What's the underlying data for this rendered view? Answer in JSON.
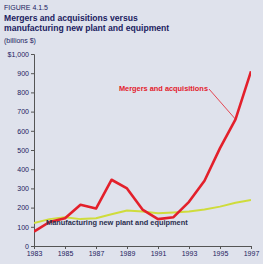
{
  "chart_data": {
    "type": "line",
    "subtitle": "FIGURE 4.1.5",
    "title": "Mergers and acquisitions versus manufacturing new plant and equipment",
    "ylabel": "(billions $)",
    "x": [
      1983,
      1984,
      1985,
      1986,
      1987,
      1988,
      1989,
      1990,
      1991,
      1992,
      1993,
      1994,
      1995,
      1996,
      1997
    ],
    "series": [
      {
        "name": "Mergers and acquisitions",
        "color": "#e3202b",
        "values": [
          75,
          125,
          145,
          215,
          195,
          345,
          300,
          190,
          140,
          150,
          230,
          340,
          510,
          660,
          910
        ]
      },
      {
        "name": "Manufacturing new plant and equipment",
        "color": "#cfdc3c",
        "values": [
          120,
          140,
          150,
          140,
          145,
          165,
          185,
          180,
          170,
          175,
          180,
          190,
          205,
          225,
          240
        ]
      }
    ],
    "xlim": [
      1983,
      1997
    ],
    "xticks": [
      1983,
      1985,
      1987,
      1989,
      1991,
      1993,
      1995,
      1997
    ],
    "ylim": [
      0,
      1000
    ],
    "yticks": [
      0,
      100,
      200,
      300,
      400,
      500,
      600,
      700,
      800,
      900,
      {
        "value": 1000,
        "label": "$1,000"
      }
    ],
    "grid": false
  }
}
